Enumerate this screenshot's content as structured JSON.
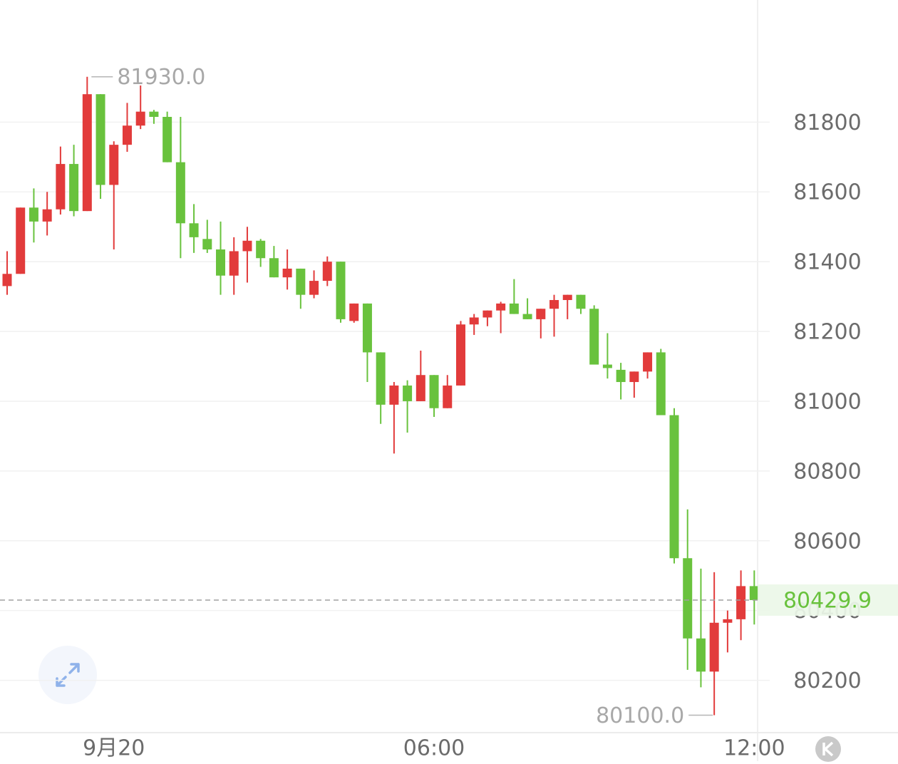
{
  "chart_data": {
    "type": "candlestick",
    "categories": [
      null,
      null,
      null,
      null,
      null,
      null,
      null,
      null,
      "9月20",
      null,
      null,
      null,
      null,
      null,
      null,
      null,
      null,
      null,
      null,
      null,
      null,
      null,
      null,
      null,
      null,
      null,
      null,
      null,
      null,
      null,
      null,
      null,
      "06:00",
      null,
      null,
      null,
      null,
      null,
      null,
      null,
      null,
      null,
      null,
      null,
      null,
      null,
      null,
      null,
      null,
      null,
      null,
      null,
      null,
      null,
      null,
      null,
      "12:00"
    ],
    "open": [
      81330,
      81365,
      81555,
      81515,
      81550,
      81680,
      81545,
      81880,
      81620,
      81735,
      81790,
      81830,
      81815,
      81685,
      81510,
      81465,
      81435,
      81360,
      81430,
      81460,
      81410,
      81355,
      81380,
      81305,
      81345,
      81400,
      81230,
      81280,
      81140,
      80990,
      81045,
      81000,
      81075,
      80980,
      81045,
      81220,
      81240,
      81260,
      81280,
      81250,
      81235,
      81265,
      81290,
      81305,
      81265,
      81105,
      81090,
      81055,
      81085,
      81140,
      80960,
      80550,
      80320,
      80225,
      80365,
      80375,
      80470
    ],
    "high": [
      81430,
      81555,
      81610,
      81600,
      81730,
      81735,
      81930,
      81880,
      81745,
      81855,
      81905,
      81835,
      81830,
      81815,
      81565,
      81520,
      81515,
      81470,
      81500,
      81465,
      81445,
      81435,
      81380,
      81375,
      81415,
      81400,
      81280,
      81280,
      81140,
      81055,
      81060,
      81145,
      81075,
      81075,
      81230,
      81250,
      81260,
      81285,
      81350,
      81295,
      81265,
      81305,
      81305,
      81305,
      81275,
      81195,
      81110,
      81085,
      81140,
      81150,
      80980,
      80690,
      80520,
      80510,
      80400,
      80515,
      80515
    ],
    "low": [
      81305,
      81365,
      81455,
      81475,
      81535,
      81530,
      81545,
      81580,
      81435,
      81715,
      81780,
      81795,
      81685,
      81410,
      81425,
      81425,
      81305,
      81305,
      81340,
      81385,
      81355,
      81320,
      81265,
      81295,
      81330,
      81225,
      81225,
      81055,
      80935,
      80850,
      80910,
      81000,
      80955,
      80980,
      81045,
      81190,
      81215,
      81195,
      81250,
      81235,
      81180,
      81185,
      81235,
      81250,
      81105,
      81065,
      81005,
      81010,
      81065,
      80960,
      80535,
      80230,
      80180,
      80100,
      80280,
      80315,
      80360
    ],
    "close": [
      81365,
      81555,
      81515,
      81550,
      81680,
      81545,
      81880,
      81620,
      81735,
      81790,
      81830,
      81815,
      81685,
      81510,
      81470,
      81435,
      81360,
      81430,
      81460,
      81410,
      81355,
      81380,
      81305,
      81345,
      81400,
      81235,
      81280,
      81140,
      80990,
      81045,
      81000,
      81075,
      80980,
      81045,
      81220,
      81240,
      81260,
      81280,
      81250,
      81235,
      81265,
      81290,
      81305,
      81265,
      81105,
      81095,
      81055,
      81085,
      81140,
      80960,
      80550,
      80320,
      80225,
      80365,
      80375,
      80470,
      80429.9
    ],
    "up_color": "#e23b3b",
    "down_color": "#69c23d",
    "ylim": [
      80050,
      82150
    ],
    "yticks": [
      80200,
      80400,
      80600,
      80800,
      81000,
      81200,
      81400,
      81600,
      81800
    ],
    "grid": true,
    "high_label": {
      "value": 81930,
      "label": "81930.0"
    },
    "low_label": {
      "value": 80100,
      "label": "80100.0"
    },
    "last_price": 80429.9
  }
}
